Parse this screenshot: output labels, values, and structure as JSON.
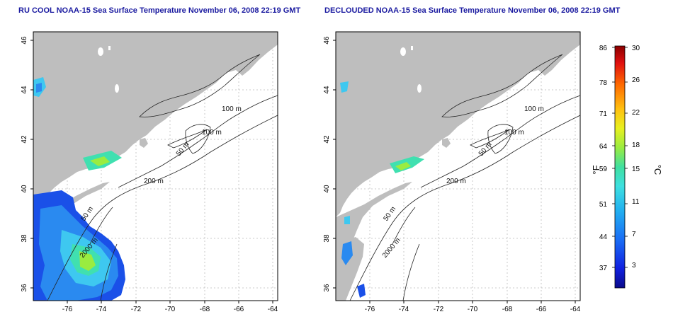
{
  "left_panel": {
    "title": "RU COOL NOAA-15 Sea Surface Temperature November 06, 2008 22:19 GMT",
    "x_ticks": [
      "-76",
      "-74",
      "-72",
      "-70",
      "-68",
      "-66",
      "-64"
    ],
    "y_ticks": [
      "36",
      "38",
      "40",
      "42",
      "44",
      "46"
    ],
    "contour_labels": [
      "100 m",
      "100 m",
      "50 m",
      "200 m",
      "50 m",
      "2000 m"
    ]
  },
  "right_panel": {
    "title": "DECLOUDED NOAA-15 Sea Surface Temperature November 06, 2008 22:19 GMT",
    "x_ticks": [
      "-76",
      "-74",
      "-72",
      "-70",
      "-68",
      "-66",
      "-64"
    ],
    "y_ticks": [
      "36",
      "38",
      "40",
      "42",
      "44",
      "46"
    ],
    "contour_labels": [
      "100 m",
      "100 m",
      "50 m",
      "200 m",
      "50 m",
      "2000 m"
    ]
  },
  "colorbar": {
    "fahrenheit_ticks": [
      "86",
      "78",
      "71",
      "64",
      "59",
      "51",
      "44",
      "37"
    ],
    "celsius_ticks": [
      "30",
      "26",
      "22",
      "18",
      "15",
      "11",
      "7",
      "3"
    ],
    "fahrenheit_unit": "°F",
    "celsius_unit": "°C"
  },
  "colors": {
    "title": "#1a1aa0",
    "land": "#bebebe",
    "water": "#ffffff",
    "grid": "#bbbbbb"
  }
}
